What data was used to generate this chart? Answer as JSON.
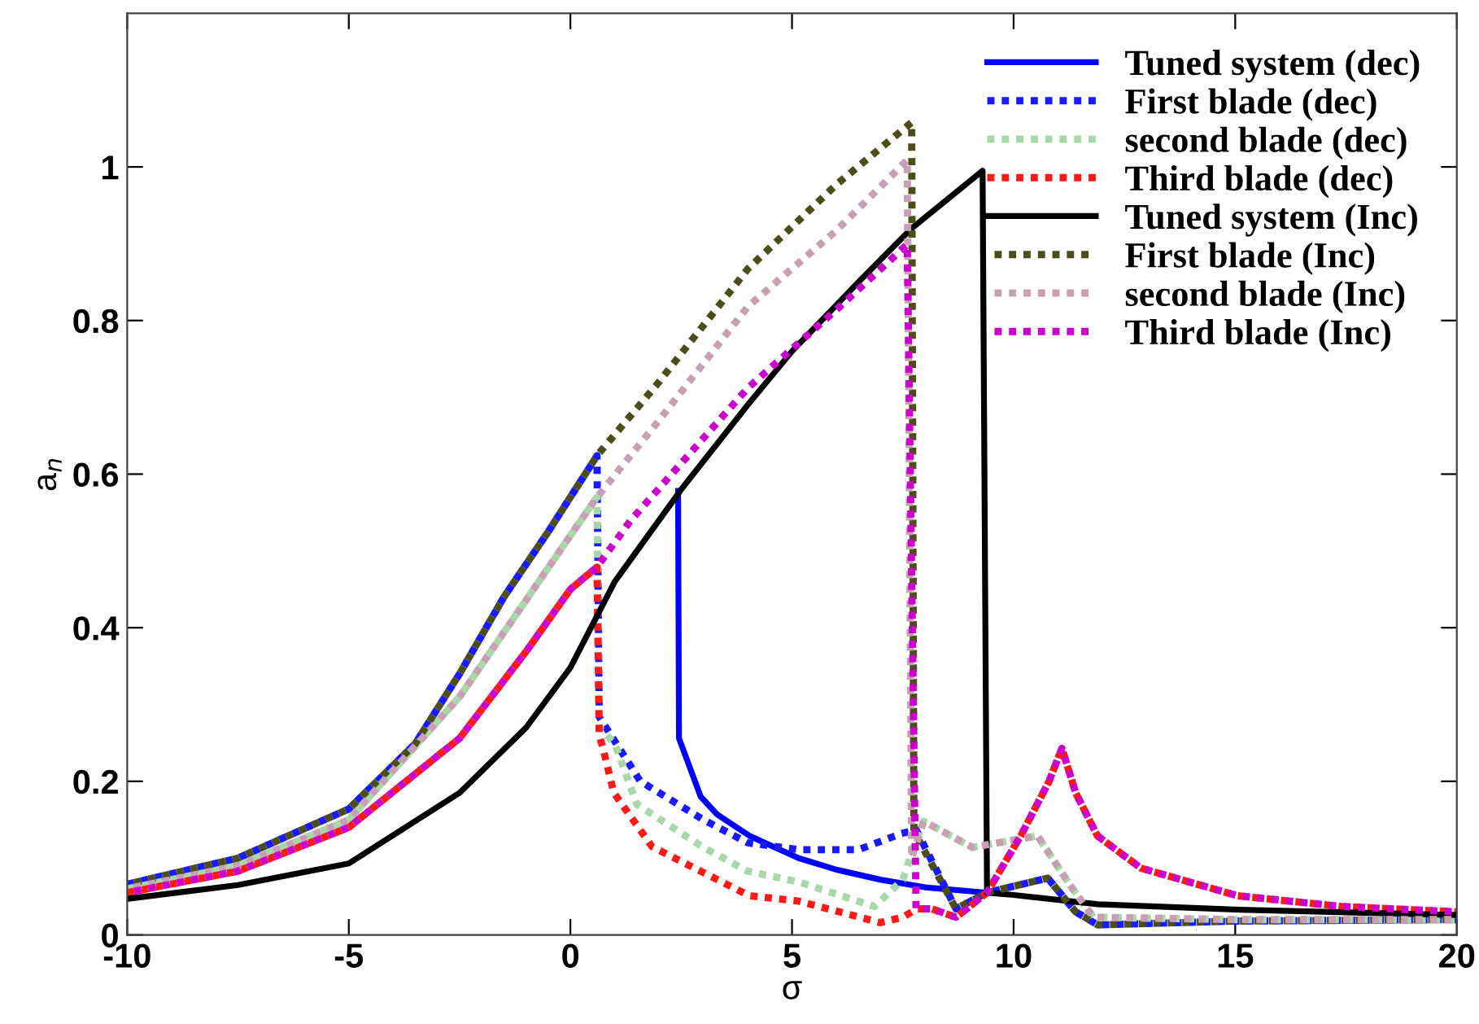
{
  "chart_data": {
    "type": "line",
    "xlabel": "σ",
    "ylabel": "a$_{n}$",
    "xlim": [
      -10,
      20
    ],
    "xticks": [
      -10,
      -5,
      0,
      5,
      10,
      15,
      20
    ],
    "ylim": [
      0,
      1.2
    ],
    "yticks": [
      0,
      0.2,
      0.4,
      0.6,
      0.8,
      1
    ],
    "grid": false,
    "legend": "top right",
    "series": [
      {
        "name": "Tuned system (dec)",
        "color": "#0000ff",
        "line_style": "solid",
        "x": [
          2.43,
          2.45,
          2.94,
          3.31,
          4.04,
          5.15,
          6,
          6.99,
          8,
          9.4
        ],
        "values": [
          0.578,
          0.256,
          0.18,
          0.157,
          0.129,
          0.1,
          0.085,
          0.072,
          0.062,
          0.055
        ]
      },
      {
        "name": "First blade (dec)",
        "color": "#1a1aff",
        "line_style": "dotted",
        "x": [
          -10,
          -7.5,
          -5,
          -3.5,
          -2.5,
          -1.5,
          -0.5,
          0.6,
          0.65,
          1.58,
          3,
          4,
          5.15,
          6.5,
          7.47,
          7.8,
          8.7,
          9.4,
          10.77,
          11.4,
          11.9,
          15,
          20
        ],
        "values": [
          0.066,
          0.1,
          0.164,
          0.249,
          0.34,
          0.44,
          0.525,
          0.624,
          0.284,
          0.2,
          0.15,
          0.12,
          0.111,
          0.111,
          0.132,
          0.137,
          0.034,
          0.055,
          0.074,
          0.03,
          0.013,
          0.018,
          0.02
        ]
      },
      {
        "name": "second blade (dec)",
        "color": "#a8d8a8",
        "line_style": "dotted",
        "x": [
          -10,
          -7.5,
          -5,
          -2.5,
          0,
          0.6,
          0.65,
          1,
          1.5,
          3,
          4,
          5.15,
          6.86,
          7.5,
          7.84,
          7.97,
          9.07,
          10.54,
          11.27,
          11.8,
          15,
          20
        ],
        "values": [
          0.06,
          0.09,
          0.15,
          0.31,
          0.52,
          0.57,
          0.27,
          0.249,
          0.17,
          0.114,
          0.083,
          0.069,
          0.037,
          0.072,
          0.132,
          0.148,
          0.114,
          0.129,
          0.065,
          0.023,
          0.02,
          0.02
        ]
      },
      {
        "name": "Third blade (dec)",
        "color": "#ff1a1a",
        "line_style": "dotted",
        "x": [
          -10,
          -7.5,
          -5,
          -2.5,
          -1,
          0,
          0.6,
          0.65,
          0.74,
          0.98,
          1.84,
          4.04,
          5.15,
          6.99,
          7.5,
          7.82,
          8.15,
          8.7,
          9.4,
          10.17,
          10.8,
          11.09,
          11.4,
          11.89,
          12.87,
          15.05,
          17.4,
          20
        ],
        "values": [
          0.055,
          0.083,
          0.14,
          0.256,
          0.369,
          0.45,
          0.479,
          0.26,
          0.242,
          0.185,
          0.115,
          0.051,
          0.044,
          0.016,
          0.023,
          0.034,
          0.034,
          0.023,
          0.055,
          0.13,
          0.2,
          0.243,
          0.185,
          0.129,
          0.087,
          0.051,
          0.037,
          0.03
        ]
      },
      {
        "name": "Tuned system (Inc)",
        "color": "#000000",
        "line_style": "solid",
        "x": [
          -10,
          -7.5,
          -5,
          -2.5,
          -1,
          0,
          1,
          2.5,
          4,
          5,
          6.5,
          7.7,
          9.3,
          9.4,
          10,
          11.9,
          15,
          20
        ],
        "values": [
          0.047,
          0.065,
          0.093,
          0.185,
          0.27,
          0.348,
          0.46,
          0.58,
          0.69,
          0.76,
          0.85,
          0.92,
          0.995,
          0.055,
          0.052,
          0.04,
          0.033,
          0.026
        ]
      },
      {
        "name": "First blade (Inc)",
        "color": "#4d4d1a",
        "line_style": "dotted",
        "x": [
          -10,
          -7.5,
          -5,
          -3.5,
          -2.5,
          -1.5,
          -0.5,
          0.6,
          2,
          4,
          6,
          7.7,
          7.75,
          8.7,
          9.4,
          10.77,
          11.4,
          11.9,
          15,
          20
        ],
        "values": [
          0.066,
          0.1,
          0.164,
          0.249,
          0.34,
          0.44,
          0.525,
          0.624,
          0.72,
          0.867,
          0.977,
          1.058,
          0.135,
          0.034,
          0.055,
          0.074,
          0.03,
          0.013,
          0.018,
          0.02
        ]
      },
      {
        "name": "second blade (Inc)",
        "color": "#c8a0b4",
        "line_style": "dotted",
        "x": [
          -10,
          -7.5,
          -5,
          -2.5,
          0,
          0.6,
          2,
          4,
          6,
          7.6,
          7.7,
          7.97,
          9.07,
          10.54,
          11.27,
          11.8,
          15,
          20
        ],
        "values": [
          0.06,
          0.09,
          0.15,
          0.31,
          0.52,
          0.57,
          0.67,
          0.818,
          0.917,
          1.009,
          0.1,
          0.148,
          0.114,
          0.129,
          0.065,
          0.023,
          0.02,
          0.02
        ]
      },
      {
        "name": "Third blade (Inc)",
        "color": "#cc00cc",
        "line_style": "dotted",
        "x": [
          -10,
          -7.5,
          -5,
          -2.5,
          -1,
          0,
          0.6,
          1.35,
          4,
          6,
          7.6,
          7.8,
          8.15,
          8.7,
          9.4,
          10.17,
          10.8,
          11.09,
          11.4,
          11.89,
          12.87,
          15.05,
          17.4,
          20
        ],
        "values": [
          0.055,
          0.083,
          0.14,
          0.256,
          0.369,
          0.45,
          0.479,
          0.539,
          0.712,
          0.814,
          0.899,
          0.034,
          0.034,
          0.023,
          0.055,
          0.13,
          0.2,
          0.243,
          0.185,
          0.129,
          0.087,
          0.051,
          0.037,
          0.03
        ]
      }
    ]
  }
}
